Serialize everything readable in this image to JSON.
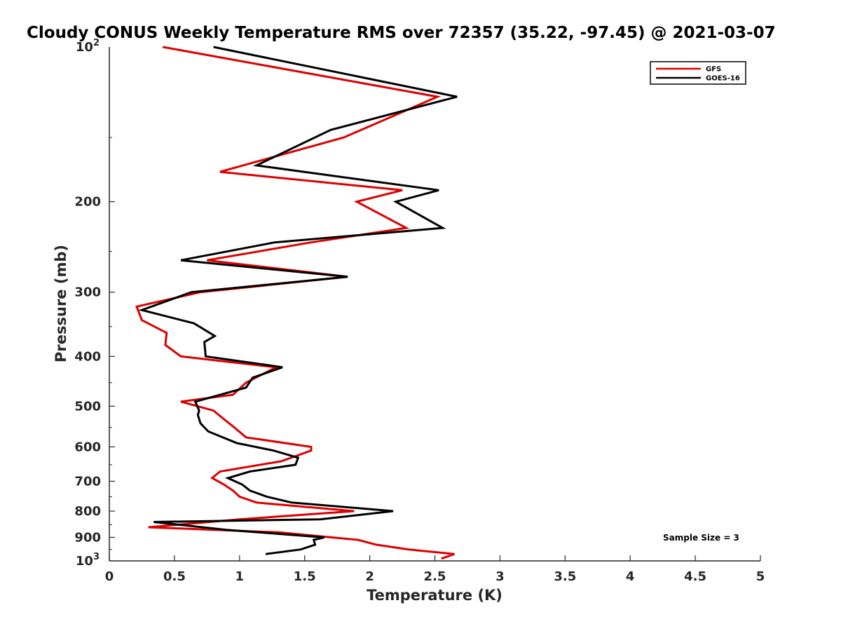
{
  "chart_data": {
    "type": "line",
    "title": "Cloudy CONUS Weekly Temperature RMS over 72357 (35.22, -97.45) @ 2021-03-07",
    "xlabel": "Temperature (K)",
    "ylabel": "Pressure (mb)",
    "xlim": [
      0,
      5
    ],
    "ylim": [
      100,
      1000
    ],
    "y_scale": "log",
    "y_reversed": true,
    "x_ticks": [
      0,
      0.5,
      1,
      1.5,
      2,
      2.5,
      3,
      3.5,
      4,
      4.5,
      5
    ],
    "x_tick_labels": [
      "0",
      "0.5",
      "1",
      "1.5",
      "2",
      "2.5",
      "3",
      "3.5",
      "4",
      "4.5",
      "5"
    ],
    "y_ticks": [
      200,
      300,
      400,
      500,
      600,
      700,
      800,
      900
    ],
    "y_tick_labels": [
      "200",
      "300",
      "400",
      "500",
      "600",
      "700",
      "800",
      "900"
    ],
    "y_power_ticks": [
      {
        "value": 100,
        "base": "10",
        "exp": "2"
      },
      {
        "value": 1000,
        "base": "10",
        "exp": "3"
      }
    ],
    "grid": false,
    "legend_position": "top-right",
    "annotation": "Sample Size = 3",
    "series": [
      {
        "name": "GFS",
        "color": "#dd0000",
        "points": [
          [
            0.41,
            100
          ],
          [
            2.52,
            125
          ],
          [
            1.8,
            150
          ],
          [
            0.85,
            175
          ],
          [
            2.25,
            190
          ],
          [
            1.9,
            200
          ],
          [
            2.28,
            225
          ],
          [
            1.55,
            240
          ],
          [
            0.75,
            260
          ],
          [
            1.83,
            280
          ],
          [
            0.7,
            300
          ],
          [
            0.21,
            320
          ],
          [
            0.25,
            340
          ],
          [
            0.44,
            360
          ],
          [
            0.43,
            380
          ],
          [
            0.55,
            400
          ],
          [
            1.28,
            420
          ],
          [
            1.05,
            450
          ],
          [
            0.95,
            475
          ],
          [
            0.55,
            490
          ],
          [
            0.8,
            510
          ],
          [
            0.88,
            530
          ],
          [
            0.96,
            550
          ],
          [
            1.05,
            575
          ],
          [
            1.55,
            600
          ],
          [
            1.55,
            610
          ],
          [
            1.32,
            640
          ],
          [
            0.85,
            670
          ],
          [
            0.79,
            690
          ],
          [
            0.88,
            710
          ],
          [
            0.95,
            730
          ],
          [
            1.0,
            750
          ],
          [
            1.13,
            770
          ],
          [
            1.88,
            800
          ],
          [
            1.0,
            830
          ],
          [
            0.3,
            860
          ],
          [
            1.3,
            880
          ],
          [
            1.91,
            910
          ],
          [
            2.05,
            930
          ],
          [
            2.3,
            950
          ],
          [
            2.65,
            970
          ],
          [
            2.55,
            990
          ]
        ]
      },
      {
        "name": "GOES-16",
        "color": "#000000",
        "points": [
          [
            0.8,
            100
          ],
          [
            2.67,
            125
          ],
          [
            1.7,
            145
          ],
          [
            1.13,
            170
          ],
          [
            2.53,
            190
          ],
          [
            2.2,
            200
          ],
          [
            2.56,
            225
          ],
          [
            1.27,
            240
          ],
          [
            0.55,
            260
          ],
          [
            1.83,
            280
          ],
          [
            0.63,
            300
          ],
          [
            0.25,
            325
          ],
          [
            0.65,
            345
          ],
          [
            0.81,
            365
          ],
          [
            0.73,
            375
          ],
          [
            0.74,
            400
          ],
          [
            1.33,
            420
          ],
          [
            1.1,
            440
          ],
          [
            1.05,
            460
          ],
          [
            0.66,
            490
          ],
          [
            0.69,
            510
          ],
          [
            0.68,
            520
          ],
          [
            0.7,
            540
          ],
          [
            0.76,
            560
          ],
          [
            0.98,
            590
          ],
          [
            1.26,
            610
          ],
          [
            1.45,
            630
          ],
          [
            1.43,
            650
          ],
          [
            1.08,
            670
          ],
          [
            0.91,
            690
          ],
          [
            1.02,
            710
          ],
          [
            1.08,
            730
          ],
          [
            1.21,
            750
          ],
          [
            1.4,
            770
          ],
          [
            2.18,
            800
          ],
          [
            1.62,
            830
          ],
          [
            0.34,
            840
          ],
          [
            0.9,
            870
          ],
          [
            1.65,
            900
          ],
          [
            1.57,
            910
          ],
          [
            1.58,
            930
          ],
          [
            1.47,
            950
          ],
          [
            1.2,
            970
          ]
        ]
      }
    ]
  }
}
